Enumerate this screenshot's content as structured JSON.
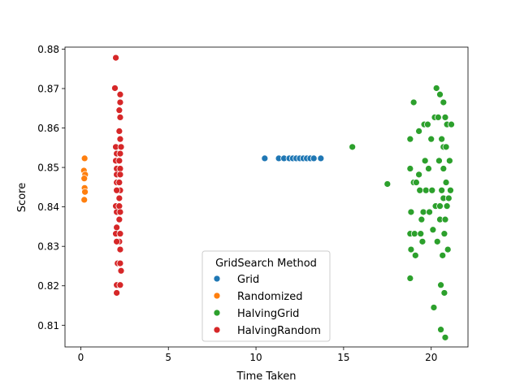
{
  "chart_data": {
    "type": "scatter",
    "xlabel": "Time Taken",
    "ylabel": "Score",
    "xlim": [
      -0.9,
      22.1
    ],
    "ylim": [
      0.8045,
      0.8805
    ],
    "xticks": [
      0,
      5,
      10,
      15,
      20
    ],
    "yticks": [
      0.81,
      0.82,
      0.83,
      0.84,
      0.85,
      0.86,
      0.87,
      0.88
    ],
    "grid": false,
    "legend": {
      "title": "GridSearch Method",
      "placement": "lower center"
    },
    "series": [
      {
        "name": "Grid",
        "color": "#1f77b4",
        "points": [
          [
            10.5,
            0.8523
          ],
          [
            11.3,
            0.8523
          ],
          [
            11.6,
            0.8523
          ],
          [
            11.9,
            0.8523
          ],
          [
            12.1,
            0.8523
          ],
          [
            12.3,
            0.8523
          ],
          [
            12.5,
            0.8523
          ],
          [
            12.7,
            0.8523
          ],
          [
            12.9,
            0.8523
          ],
          [
            13.1,
            0.8523
          ],
          [
            13.3,
            0.8523
          ],
          [
            13.7,
            0.8523
          ]
        ]
      },
      {
        "name": "Randomized",
        "color": "#ff7f0e",
        "points": [
          [
            0.22,
            0.8523
          ],
          [
            0.18,
            0.8492
          ],
          [
            0.25,
            0.8482
          ],
          [
            0.2,
            0.8472
          ],
          [
            0.22,
            0.8448
          ],
          [
            0.24,
            0.8438
          ],
          [
            0.2,
            0.8418
          ]
        ]
      },
      {
        "name": "HalvingGrid",
        "color": "#2ca02c",
        "points": [
          [
            15.5,
            0.8552
          ],
          [
            17.5,
            0.8458
          ],
          [
            18.8,
            0.8572
          ],
          [
            18.8,
            0.8497
          ],
          [
            18.85,
            0.8387
          ],
          [
            18.8,
            0.8332
          ],
          [
            18.85,
            0.8292
          ],
          [
            18.8,
            0.8219
          ],
          [
            19.0,
            0.8665
          ],
          [
            19.0,
            0.8462
          ],
          [
            19.05,
            0.8332
          ],
          [
            19.1,
            0.8277
          ],
          [
            19.15,
            0.8462
          ],
          [
            19.3,
            0.8482
          ],
          [
            19.3,
            0.8592
          ],
          [
            19.35,
            0.8442
          ],
          [
            19.4,
            0.8332
          ],
          [
            19.45,
            0.8368
          ],
          [
            19.5,
            0.8312
          ],
          [
            19.55,
            0.8387
          ],
          [
            19.6,
            0.8609
          ],
          [
            19.65,
            0.8517
          ],
          [
            19.7,
            0.8442
          ],
          [
            19.8,
            0.8609
          ],
          [
            19.85,
            0.8497
          ],
          [
            19.9,
            0.8387
          ],
          [
            20.0,
            0.8572
          ],
          [
            20.05,
            0.8442
          ],
          [
            20.1,
            0.8342
          ],
          [
            20.15,
            0.8145
          ],
          [
            20.2,
            0.8627
          ],
          [
            20.25,
            0.8402
          ],
          [
            20.3,
            0.8701
          ],
          [
            20.35,
            0.8312
          ],
          [
            20.4,
            0.8627
          ],
          [
            20.45,
            0.8517
          ],
          [
            20.5,
            0.8685
          ],
          [
            20.5,
            0.8402
          ],
          [
            20.5,
            0.8368
          ],
          [
            20.55,
            0.8202
          ],
          [
            20.55,
            0.8089
          ],
          [
            20.6,
            0.8572
          ],
          [
            20.6,
            0.8442
          ],
          [
            20.65,
            0.8277
          ],
          [
            20.7,
            0.8665
          ],
          [
            20.7,
            0.8552
          ],
          [
            20.7,
            0.8497
          ],
          [
            20.7,
            0.8422
          ],
          [
            20.75,
            0.8332
          ],
          [
            20.75,
            0.8182
          ],
          [
            20.8,
            0.8069
          ],
          [
            20.8,
            0.8627
          ],
          [
            20.8,
            0.8368
          ],
          [
            20.85,
            0.8552
          ],
          [
            20.85,
            0.8462
          ],
          [
            20.9,
            0.8609
          ],
          [
            20.9,
            0.8402
          ],
          [
            20.95,
            0.8292
          ],
          [
            21.0,
            0.8422
          ],
          [
            21.05,
            0.8517
          ],
          [
            21.1,
            0.8442
          ],
          [
            21.15,
            0.8609
          ]
        ]
      },
      {
        "name": "HalvingRandom",
        "color": "#d62728",
        "points": [
          [
            2.0,
            0.8778
          ],
          [
            1.95,
            0.8701
          ],
          [
            2.25,
            0.8685
          ],
          [
            2.25,
            0.8665
          ],
          [
            2.2,
            0.8645
          ],
          [
            2.25,
            0.8627
          ],
          [
            2.2,
            0.8592
          ],
          [
            2.25,
            0.8572
          ],
          [
            2.0,
            0.8552
          ],
          [
            2.3,
            0.8552
          ],
          [
            2.05,
            0.8535
          ],
          [
            2.25,
            0.8535
          ],
          [
            2.0,
            0.8517
          ],
          [
            2.2,
            0.8517
          ],
          [
            2.05,
            0.8497
          ],
          [
            2.25,
            0.8497
          ],
          [
            2.05,
            0.8482
          ],
          [
            2.25,
            0.8482
          ],
          [
            2.05,
            0.8462
          ],
          [
            2.2,
            0.8462
          ],
          [
            2.25,
            0.8442
          ],
          [
            2.05,
            0.8442
          ],
          [
            2.2,
            0.8422
          ],
          [
            2.0,
            0.8402
          ],
          [
            2.2,
            0.8402
          ],
          [
            2.05,
            0.8387
          ],
          [
            2.25,
            0.8387
          ],
          [
            2.2,
            0.8368
          ],
          [
            2.05,
            0.8348
          ],
          [
            2.0,
            0.8332
          ],
          [
            2.25,
            0.8332
          ],
          [
            2.2,
            0.8312
          ],
          [
            2.05,
            0.8312
          ],
          [
            2.25,
            0.8292
          ],
          [
            2.1,
            0.8257
          ],
          [
            2.25,
            0.8257
          ],
          [
            2.3,
            0.8238
          ],
          [
            2.05,
            0.8202
          ],
          [
            2.25,
            0.8202
          ],
          [
            2.05,
            0.8182
          ]
        ]
      }
    ]
  }
}
